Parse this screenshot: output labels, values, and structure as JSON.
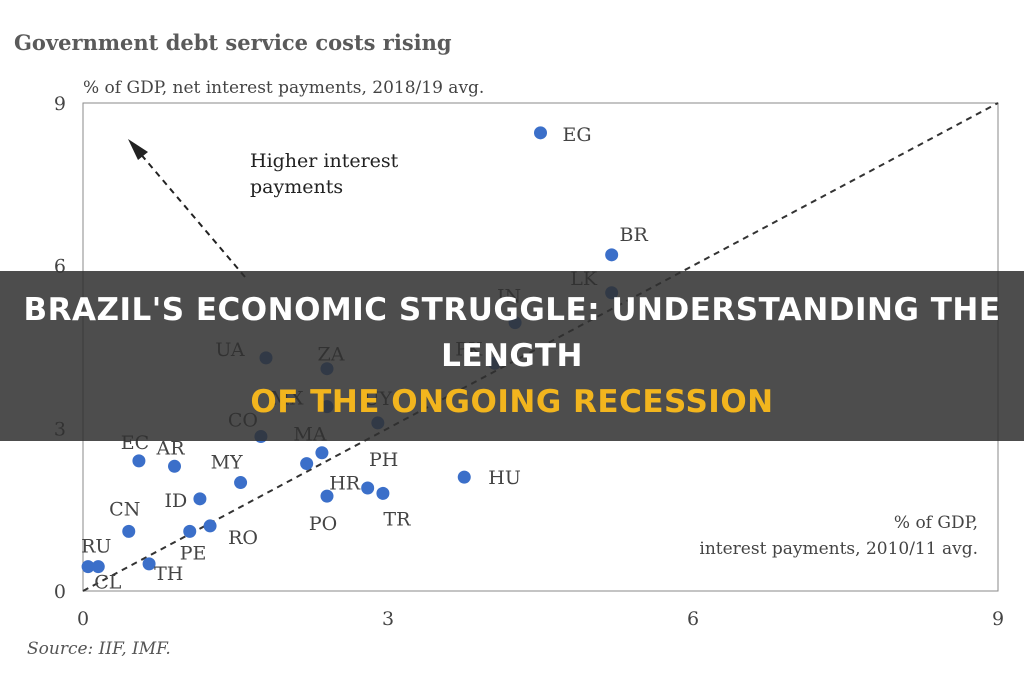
{
  "headline": {
    "line1": "BRAZIL'S ECONOMIC STRUGGLE: UNDERSTANDING THE LENGTH",
    "line2": "OF THE ONGOING RECESSION",
    "line1_color": "#ffffff",
    "line2_color": "#f2b51e"
  },
  "chart_data": {
    "type": "scatter",
    "title": "Government debt service costs rising",
    "ylabel": "% of GDP, net interest payments, 2018/19 avg.",
    "xlabel": [
      "% of GDP,",
      "interest payments, 2010/11 avg."
    ],
    "xlim": [
      0,
      9
    ],
    "ylim": [
      0,
      9
    ],
    "xticks": [
      "0",
      "3",
      "6",
      "9"
    ],
    "yticks": [
      "0",
      "3",
      "6",
      "9"
    ],
    "annotation": [
      "Higher interest",
      "payments"
    ],
    "source": "Source: IIF, IMF.",
    "point_color": "#3b6fc9",
    "points": [
      {
        "label": "EG",
        "x": 4.5,
        "y": 8.45
      },
      {
        "label": "BR",
        "x": 5.2,
        "y": 6.2
      },
      {
        "label": "LK",
        "x": 5.2,
        "y": 5.5
      },
      {
        "label": "IN",
        "x": 4.25,
        "y": 4.95
      },
      {
        "label": "PK",
        "x": 4.05,
        "y": 4.2
      },
      {
        "label": "UA",
        "x": 1.8,
        "y": 4.3
      },
      {
        "label": "ZA",
        "x": 2.4,
        "y": 4.1
      },
      {
        "label": "MX",
        "x": 2.4,
        "y": 3.4
      },
      {
        "label": "UY",
        "x": 2.9,
        "y": 3.1
      },
      {
        "label": "CO",
        "x": 1.75,
        "y": 2.85
      },
      {
        "label": "MA",
        "x": 2.35,
        "y": 2.55
      },
      {
        "label": "EC",
        "x": 0.55,
        "y": 2.4
      },
      {
        "label": "AR",
        "x": 0.9,
        "y": 2.3
      },
      {
        "label": "MY",
        "x": 1.55,
        "y": 2.0
      },
      {
        "label": "HR",
        "x": 2.2,
        "y": 2.35
      },
      {
        "label": "PH",
        "x": 2.8,
        "y": 1.9
      },
      {
        "label": "HU",
        "x": 3.75,
        "y": 2.1
      },
      {
        "label": "ID",
        "x": 1.15,
        "y": 1.7
      },
      {
        "label": "CN",
        "x": 0.45,
        "y": 1.1
      },
      {
        "label": "PO",
        "x": 2.4,
        "y": 1.75
      },
      {
        "label": "TR",
        "x": 2.95,
        "y": 1.8
      },
      {
        "label": "RO",
        "x": 1.25,
        "y": 1.2
      },
      {
        "label": "PE",
        "x": 1.05,
        "y": 1.1
      },
      {
        "label": "RU",
        "x": 0.05,
        "y": 0.45
      },
      {
        "label": "CL",
        "x": 0.15,
        "y": 0.45
      },
      {
        "label": "TH",
        "x": 0.65,
        "y": 0.5
      }
    ]
  }
}
